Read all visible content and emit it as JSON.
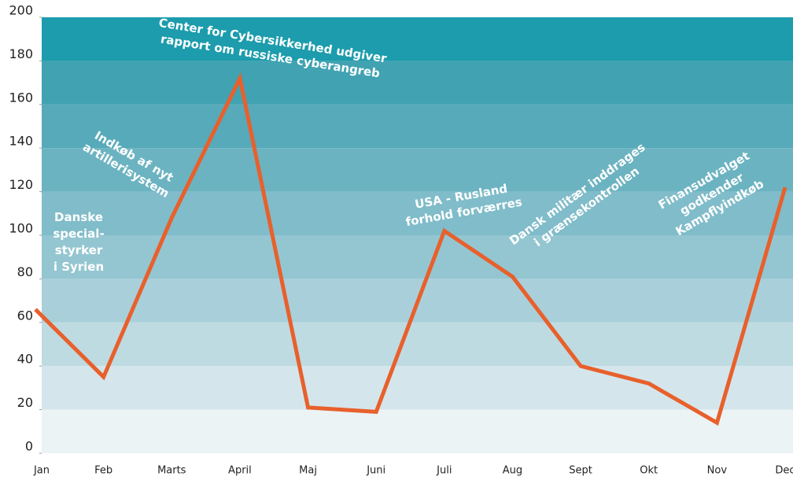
{
  "chart_data": {
    "type": "line",
    "categories": [
      "Jan",
      "Feb",
      "Marts",
      "April",
      "Maj",
      "Juni",
      "Juli",
      "Aug",
      "Sept",
      "Okt",
      "Nov",
      "Dec"
    ],
    "series": [
      {
        "color": "#e8602c",
        "values": [
          66,
          35,
          108,
          172,
          21,
          19,
          102,
          81,
          40,
          32,
          14,
          122
        ]
      }
    ],
    "ylim": [
      0,
      200
    ],
    "yticks": [
      0,
      20,
      40,
      60,
      80,
      100,
      120,
      140,
      160,
      180,
      200
    ],
    "band_colors": [
      "#ebf3f5",
      "#d4e6eb",
      "#bfdbe2",
      "#a9d0da",
      "#94c6d1",
      "#80bcc9",
      "#6cb3c1",
      "#57aab9",
      "#41a2b2",
      "#1c9cac"
    ],
    "annotations": [
      {
        "lines": [
          "Danske",
          "special-",
          "styrker",
          "i Syrien"
        ]
      },
      {
        "lines": [
          "Indkøb af nyt",
          "artillerisystem"
        ]
      },
      {
        "lines": [
          "Center for Cybersikkerhed udgiver",
          "rapport om russiske cyberangreb"
        ]
      },
      {
        "lines": [
          "USA - Rusland",
          "forhold forværres"
        ]
      },
      {
        "lines": [
          "Dansk militær inddrages",
          "i grænsekontrollen"
        ]
      },
      {
        "lines": [
          "Finansudvalget",
          "godkender",
          "Kampflyindkøb"
        ]
      }
    ]
  }
}
